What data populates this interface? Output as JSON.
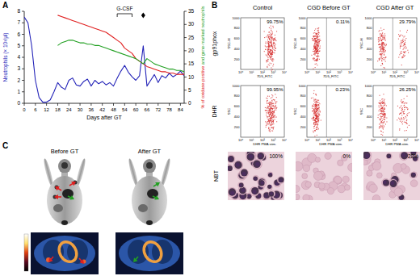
{
  "chart_data": {
    "type": "line",
    "x_label": "Days after GT",
    "y_label": "Neutrophils (× 10³/µl)",
    "y2_label": [
      "% of oxidase-positive",
      "and gene-marked neutrophils"
    ],
    "x": [
      0,
      2,
      4,
      6,
      8,
      10,
      12,
      14,
      16,
      18,
      20,
      22,
      24,
      26,
      28,
      30,
      32,
      34,
      36,
      38,
      40,
      42,
      44,
      46,
      48,
      50,
      52,
      54,
      56,
      58,
      60,
      62,
      64,
      66,
      68,
      70,
      72,
      74,
      76,
      78,
      80,
      82,
      84,
      86
    ],
    "xlim": [
      0,
      86
    ],
    "xticks": [
      0,
      6,
      12,
      18,
      24,
      30,
      36,
      42,
      48,
      54,
      60,
      66,
      72,
      78,
      84
    ],
    "ylim": [
      0,
      8
    ],
    "yticks": [
      0,
      1,
      2,
      3,
      4,
      5,
      6,
      7,
      8
    ],
    "y2lim": [
      0,
      35
    ],
    "y2ticks": [
      0,
      5,
      10,
      15,
      20,
      25,
      30,
      35
    ],
    "grid": false,
    "series": [
      {
        "color": "#2323b8",
        "values": [
          7.5,
          7.0,
          5.0,
          2.0,
          0.5,
          0.1,
          0.1,
          0.3,
          1.0,
          1.8,
          1.4,
          1.2,
          2.0,
          2.2,
          1.6,
          1.5,
          1.9,
          2.1,
          1.5,
          2.0,
          1.7,
          1.9,
          1.6,
          1.8,
          1.5,
          2.2,
          2.8,
          3.3,
          2.7,
          2.3,
          2.0,
          2.4,
          5.0,
          1.5,
          2.0,
          2.5,
          1.8,
          2.4,
          2.2,
          2.6,
          2.3,
          2.5,
          2.8,
          2.4
        ]
      },
      {
        "color": "#e02020",
        "axis": "y2",
        "values": [
          null,
          null,
          null,
          null,
          null,
          null,
          null,
          null,
          null,
          33.5,
          33,
          32.5,
          32,
          31.5,
          31,
          30.5,
          30,
          29.5,
          29,
          28.5,
          28,
          27.5,
          27,
          26,
          25,
          24,
          23,
          21,
          20,
          19,
          17,
          16,
          15,
          14,
          13.5,
          13,
          12.5,
          12,
          12,
          11.5,
          11.5,
          11,
          11,
          11
        ]
      },
      {
        "color": "#22a022",
        "axis": "y2",
        "values": [
          null,
          null,
          null,
          null,
          null,
          null,
          null,
          null,
          null,
          22,
          23,
          23.5,
          24,
          24,
          23.5,
          23,
          23,
          22.5,
          22.5,
          22,
          22,
          21.5,
          21,
          20.5,
          20,
          19.5,
          19,
          18.5,
          18,
          17.5,
          17,
          16,
          15,
          17,
          16,
          15,
          14.5,
          14,
          13.5,
          13,
          13,
          12.5,
          12.5,
          12
        ]
      }
    ],
    "annotations": [
      {
        "text": "G-CSF",
        "x": [
          50,
          58
        ]
      },
      {
        "x": 64,
        "marker": "diamond"
      }
    ]
  },
  "panel_a": {
    "label": "A"
  },
  "panel_b": {
    "label": "B",
    "columns": [
      "Control",
      "CGD Before GT",
      "CGD After GT"
    ],
    "rows": [
      {
        "label": "gp91phox",
        "y_label": "SSC-H",
        "x_label": "7D5_FITC",
        "percentages": [
          "99.75%",
          "0.11%",
          "29.79%"
        ]
      },
      {
        "label": "DHR",
        "y_label": "SSC",
        "x_label": "DHR PMA stim.",
        "percentages": [
          "99.95%",
          "0.23%",
          "26.25%"
        ]
      }
    ],
    "yticks": [
      "0",
      "200",
      "400",
      "600",
      "800",
      "1000"
    ],
    "xticks": [
      "10⁰",
      "10¹",
      "10²",
      "10³",
      "10⁴"
    ],
    "nbt": {
      "label": "NBT",
      "percentages": [
        "100%",
        "0%",
        "28%"
      ]
    }
  },
  "panel_c": {
    "label": "C",
    "columns": [
      "Before GT",
      "After GT"
    ]
  }
}
